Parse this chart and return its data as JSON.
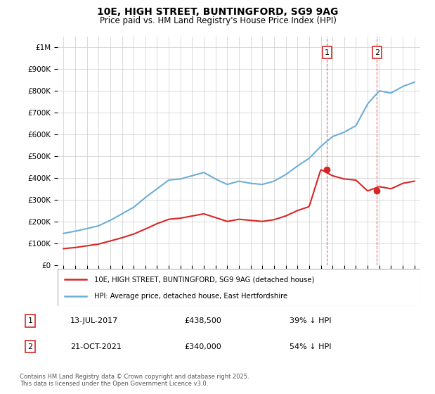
{
  "title": "10E, HIGH STREET, BUNTINGFORD, SG9 9AG",
  "subtitle": "Price paid vs. HM Land Registry's House Price Index (HPI)",
  "hpi_label": "HPI: Average price, detached house, East Hertfordshire",
  "price_label": "10E, HIGH STREET, BUNTINGFORD, SG9 9AG (detached house)",
  "footnote": "Contains HM Land Registry data © Crown copyright and database right 2025.\nThis data is licensed under the Open Government Licence v3.0.",
  "sale1_date": "13-JUL-2017",
  "sale1_price": 438500,
  "sale1_pct": "39% ↓ HPI",
  "sale2_date": "21-OCT-2021",
  "sale2_price": 340000,
  "sale2_pct": "54% ↓ HPI",
  "sale1_year": 2017.53,
  "sale2_year": 2021.8,
  "ylim_max": 1050000,
  "ylim_min": 0,
  "hpi_color": "#6baed6",
  "price_color": "#d62728",
  "vline_color": "#d62728",
  "marker_color": "#d62728",
  "background_color": "#ffffff",
  "grid_color": "#cccccc",
  "hpi_data_years": [
    1995,
    1996,
    1997,
    1998,
    1999,
    2000,
    2001,
    2002,
    2003,
    2004,
    2005,
    2006,
    2007,
    2008,
    2009,
    2010,
    2011,
    2012,
    2013,
    2014,
    2015,
    2016,
    2017,
    2018,
    2019,
    2020,
    2021,
    2022,
    2023,
    2024,
    2025
  ],
  "hpi_data_values": [
    145000,
    155000,
    167000,
    180000,
    205000,
    235000,
    265000,
    310000,
    350000,
    390000,
    395000,
    410000,
    425000,
    395000,
    370000,
    385000,
    375000,
    370000,
    385000,
    415000,
    455000,
    490000,
    545000,
    590000,
    610000,
    640000,
    740000,
    800000,
    790000,
    820000,
    840000
  ],
  "price_data_years": [
    1995,
    1996,
    1997,
    1998,
    1999,
    2000,
    2001,
    2002,
    2003,
    2004,
    2005,
    2006,
    2007,
    2008,
    2009,
    2010,
    2011,
    2012,
    2013,
    2014,
    2015,
    2016,
    2017,
    2018,
    2019,
    2020,
    2021,
    2022,
    2023,
    2024,
    2025
  ],
  "price_data_values": [
    75000,
    80000,
    88000,
    96000,
    110000,
    125000,
    142000,
    165000,
    190000,
    210000,
    215000,
    225000,
    235000,
    218000,
    200000,
    210000,
    205000,
    200000,
    208000,
    225000,
    250000,
    268000,
    438500,
    410000,
    395000,
    390000,
    340000,
    360000,
    350000,
    375000,
    385000
  ]
}
